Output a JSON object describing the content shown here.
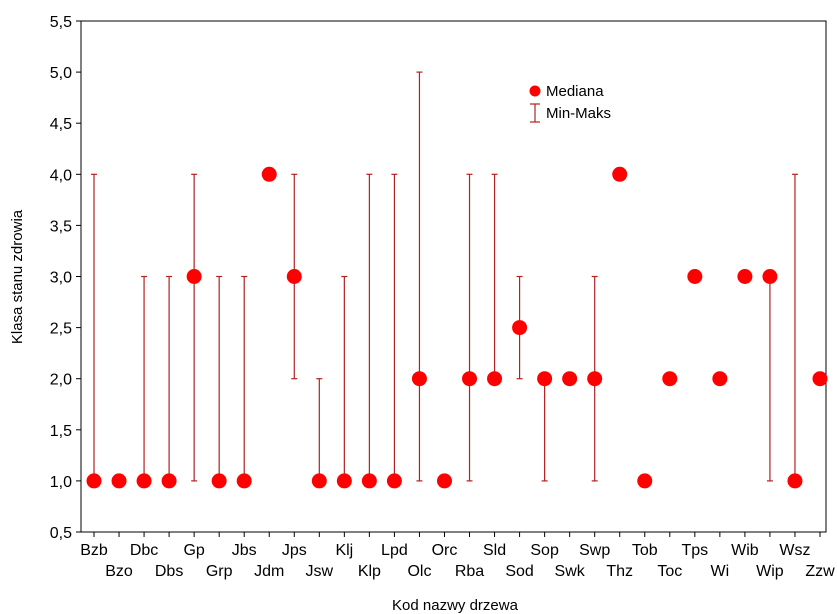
{
  "chart_data": {
    "type": "scatter",
    "xlabel": "Kod nazwy drzewa",
    "ylabel": "Klasa stanu zdrowia",
    "ylim": [
      0.5,
      5.5
    ],
    "yticks": [
      "0,5",
      "1,0",
      "1,5",
      "2,0",
      "2,5",
      "3,0",
      "3,5",
      "4,0",
      "4,5",
      "5,0",
      "5,5"
    ],
    "ytick_values": [
      0.5,
      1.0,
      1.5,
      2.0,
      2.5,
      3.0,
      3.5,
      4.0,
      4.5,
      5.0,
      5.5
    ],
    "categories": [
      "Bzb",
      "Bzo",
      "Dbc",
      "Dbs",
      "Gp",
      "Grp",
      "Jbs",
      "Jdm",
      "Jps",
      "Jsw",
      "Klj",
      "Klp",
      "Lpd",
      "Olc",
      "Orc",
      "Rba",
      "Sld",
      "Sod",
      "Sop",
      "Swk",
      "Swp",
      "Thz",
      "Tob",
      "Toc",
      "Tps",
      "Wi",
      "Wib",
      "Wip",
      "Wsz",
      "Zzw"
    ],
    "series": [
      {
        "name": "Mediana",
        "values": [
          1,
          1,
          1,
          1,
          3,
          1,
          1,
          4,
          3,
          1,
          1,
          1,
          1,
          2,
          1,
          2,
          2,
          2.5,
          2,
          2,
          2,
          4,
          1,
          2,
          3,
          2,
          3,
          3,
          1,
          2
        ]
      },
      {
        "name": "Min-Maks",
        "min": [
          1,
          1,
          1,
          1,
          1,
          1,
          1,
          4,
          2,
          1,
          1,
          1,
          1,
          1,
          1,
          1,
          2,
          2,
          1,
          2,
          1,
          4,
          1,
          2,
          3,
          2,
          3,
          1,
          1,
          2
        ],
        "max": [
          4,
          1,
          3,
          3,
          4,
          3,
          3,
          4,
          4,
          2,
          3,
          4,
          4,
          5,
          1,
          4,
          4,
          3,
          2,
          2,
          3,
          4,
          1,
          2,
          3,
          2,
          3,
          3,
          4,
          2
        ]
      }
    ],
    "legend_position": "top-right",
    "grid": false,
    "colors": {
      "median": "#ff0000",
      "whisker": "#b22222"
    }
  }
}
